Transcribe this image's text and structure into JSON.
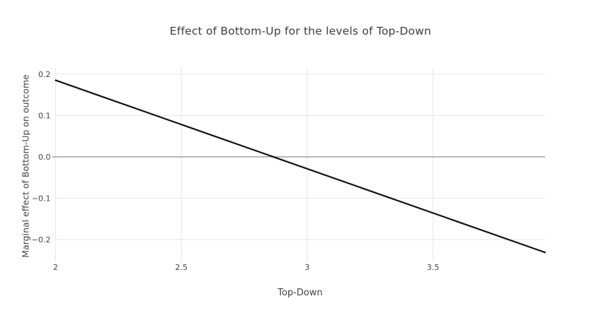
{
  "chart_data": {
    "type": "line",
    "title": "Effect of Bottom-Up for the levels of Top-Down",
    "xlabel": "Top-Down",
    "ylabel": "Marginal effect of Bottom-Up on outcome",
    "xlim": [
      2,
      3.945
    ],
    "ylim": [
      -0.246,
      0.215
    ],
    "x_ticks": [
      2,
      2.5,
      3,
      3.5
    ],
    "x_tick_labels": [
      "2",
      "2.5",
      "3",
      "3.5"
    ],
    "y_ticks": [
      0.2,
      0.1,
      0.0,
      -0.1,
      -0.2
    ],
    "y_tick_labels": [
      "0.2",
      "0.1",
      "0.0",
      "−0.1",
      "−0.2"
    ],
    "grid": true,
    "legend": "none",
    "zero_line_y": 0,
    "series": [
      {
        "name": "marginal effect of Bottom-Up",
        "x": [
          2,
          3.945
        ],
        "y": [
          0.185,
          -0.231
        ]
      }
    ],
    "annotations": {
      "zero_crossing_x": 2.87,
      "slope_per_unit": -0.214
    },
    "colors": {
      "line": "#111111",
      "zero_line": "#999999",
      "grid": "#ebebeb",
      "text": "#444444",
      "background": "#ffffff"
    }
  }
}
